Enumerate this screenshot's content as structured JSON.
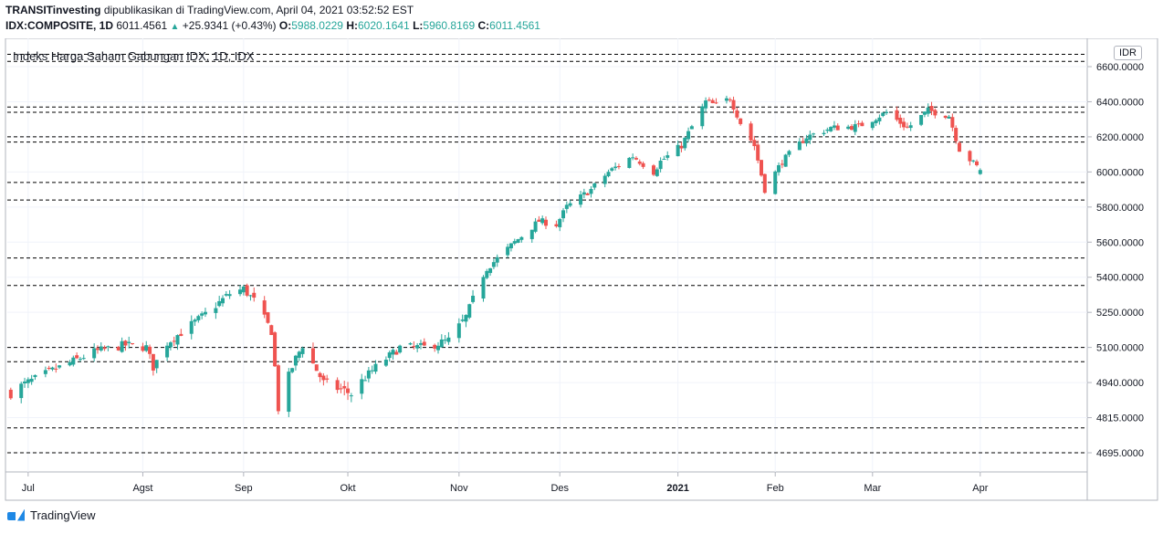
{
  "header": {
    "publisher": "TRANSITinvesting",
    "published_text": "dipublikasikan di TradingView.com, April 04, 2021 03:52:52 EST",
    "symbol": "IDX:COMPOSITE, 1D",
    "last": "6011.4561",
    "change": "+25.9341 (+0.43%)",
    "o_label": "O:",
    "o_value": "5988.0229",
    "h_label": "H:",
    "h_value": "6020.1641",
    "l_label": "L:",
    "l_value": "5960.8169",
    "c_label": "C:",
    "c_value": "6011.4561"
  },
  "chart_title": "Indeks Harga Saham Gabungan IDX, 1D, IDX",
  "currency_label": "IDR",
  "footer_brand": "TradingView",
  "colors": {
    "up": "#26a69a",
    "down": "#ef5350",
    "grid": "#f0f3fa",
    "level": "#000000"
  },
  "chart_data": {
    "type": "candlestick",
    "title": "Indeks Harga Saham Gabungan IDX, 1D, IDX",
    "y_ticks": [
      6600,
      6400,
      6200,
      6000,
      5800,
      5600,
      5400,
      5250,
      5100,
      4940,
      4815,
      4695
    ],
    "y_tick_labels": [
      "6600.0000",
      "6400.0000",
      "6200.0000",
      "6000.0000",
      "5800.0000",
      "5600.0000",
      "5400.0000",
      "5250.0000",
      "5100.0000",
      "4940.0000",
      "4815.0000",
      "4695.0000"
    ],
    "x_ticks": [
      {
        "label": "Jul",
        "date": "2020-07-01",
        "bold": false
      },
      {
        "label": "Agst",
        "date": "2020-08-03",
        "bold": false
      },
      {
        "label": "Sep",
        "date": "2020-09-01",
        "bold": false
      },
      {
        "label": "Okt",
        "date": "2020-10-01",
        "bold": false
      },
      {
        "label": "Nov",
        "date": "2020-11-02",
        "bold": false
      },
      {
        "label": "Des",
        "date": "2020-12-01",
        "bold": false
      },
      {
        "label": "2021",
        "date": "2021-01-04",
        "bold": true
      },
      {
        "label": "Feb",
        "date": "2021-02-01",
        "bold": false
      },
      {
        "label": "Mar",
        "date": "2021-03-01",
        "bold": false
      },
      {
        "label": "Apr",
        "date": "2021-04-01",
        "bold": false
      }
    ],
    "x_range": [
      "2020-06-25",
      "2021-05-01"
    ],
    "y_range": [
      4655,
      6700
    ],
    "horizontal_levels": [
      6670,
      6630,
      6370,
      6340,
      6200,
      6170,
      5940,
      5840,
      5510,
      5365,
      5100,
      5035,
      4780,
      4695
    ],
    "close_path": [
      [
        "2020-06-26",
        4904
      ],
      [
        "2020-07-08",
        4995
      ],
      [
        "2020-07-20",
        5080
      ],
      [
        "2020-07-29",
        5110
      ],
      [
        "2020-08-04",
        5100
      ],
      [
        "2020-08-06",
        5010
      ],
      [
        "2020-08-10",
        5120
      ],
      [
        "2020-08-20",
        5230
      ],
      [
        "2020-08-28",
        5330
      ],
      [
        "2020-09-01",
        5350
      ],
      [
        "2020-09-04",
        5300
      ],
      [
        "2020-09-09",
        5170
      ],
      [
        "2020-09-11",
        4850
      ],
      [
        "2020-09-16",
        5050
      ],
      [
        "2020-09-18",
        5110
      ],
      [
        "2020-09-24",
        4940
      ],
      [
        "2020-09-28",
        4920
      ],
      [
        "2020-10-02",
        4900
      ],
      [
        "2020-10-09",
        5010
      ],
      [
        "2020-10-16",
        5100
      ],
      [
        "2020-10-23",
        5100
      ],
      [
        "2020-10-30",
        5130
      ],
      [
        "2020-11-04",
        5230
      ],
      [
        "2020-11-10",
        5450
      ],
      [
        "2020-11-18",
        5600
      ],
      [
        "2020-11-25",
        5720
      ],
      [
        "2020-11-30",
        5700
      ],
      [
        "2020-12-03",
        5800
      ],
      [
        "2020-12-10",
        5900
      ],
      [
        "2020-12-15",
        6000
      ],
      [
        "2020-12-22",
        6090
      ],
      [
        "2020-12-28",
        6000
      ],
      [
        "2020-12-30",
        6060
      ],
      [
        "2021-01-05",
        6150
      ],
      [
        "2021-01-12",
        6400
      ],
      [
        "2021-01-15",
        6380
      ],
      [
        "2021-01-19",
        6420
      ],
      [
        "2021-01-22",
        6280
      ],
      [
        "2021-01-26",
        6150
      ],
      [
        "2021-01-29",
        5900
      ],
      [
        "2021-02-03",
        6060
      ],
      [
        "2021-02-10",
        6200
      ],
      [
        "2021-02-17",
        6250
      ],
      [
        "2021-02-25",
        6260
      ],
      [
        "2021-03-05",
        6340
      ],
      [
        "2021-03-11",
        6250
      ],
      [
        "2021-03-17",
        6350
      ],
      [
        "2021-03-23",
        6320
      ],
      [
        "2021-03-26",
        6130
      ],
      [
        "2021-03-30",
        6050
      ],
      [
        "2021-04-01",
        6011
      ]
    ]
  }
}
